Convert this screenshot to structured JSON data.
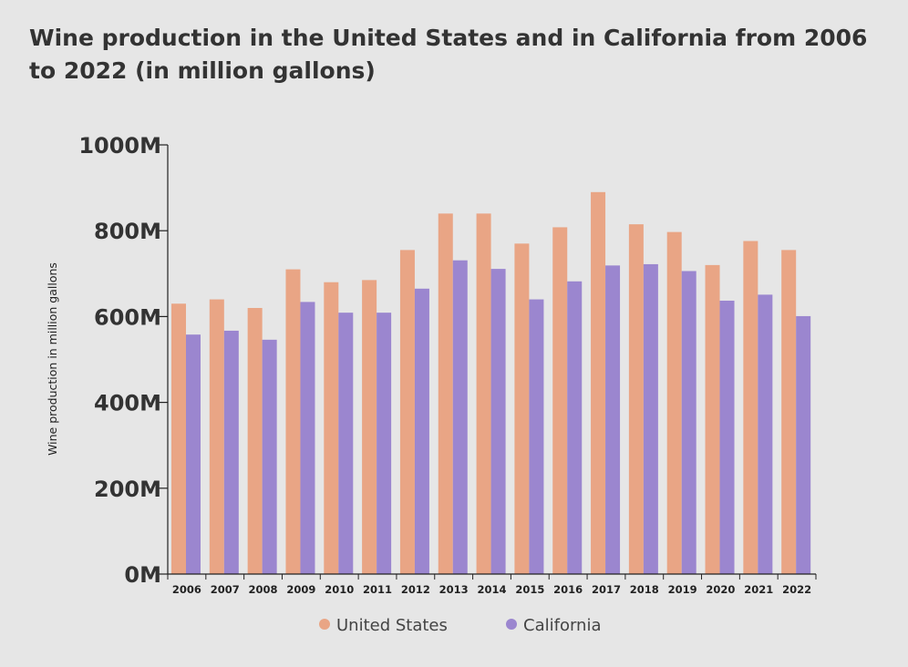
{
  "chart_data": {
    "type": "bar",
    "title": "Wine production in the United States and in California from 2006 to 2022 (in million gallons)",
    "ylabel": "Wine production in million gallons",
    "xlabel": "",
    "ylim": [
      0,
      1000
    ],
    "yticks": [
      0,
      200,
      400,
      600,
      800,
      1000
    ],
    "ytick_labels": [
      "0M",
      "200M",
      "400M",
      "600M",
      "800M",
      "1000M"
    ],
    "categories": [
      "2006",
      "2007",
      "2008",
      "2009",
      "2010",
      "2011",
      "2012",
      "2013",
      "2014",
      "2015",
      "2016",
      "2017",
      "2018",
      "2019",
      "2020",
      "2021",
      "2022"
    ],
    "series": [
      {
        "name": "United States",
        "color": "#e9a585",
        "values": [
          630,
          640,
          620,
          710,
          680,
          685,
          755,
          840,
          840,
          770,
          808,
          890,
          815,
          797,
          720,
          776,
          755
        ]
      },
      {
        "name": "California",
        "color": "#9b86cf",
        "values": [
          558,
          567,
          546,
          634,
          609,
          609,
          665,
          731,
          711,
          640,
          682,
          719,
          722,
          706,
          637,
          651,
          601
        ]
      }
    ],
    "grid": false,
    "legend_position": "bottom"
  }
}
